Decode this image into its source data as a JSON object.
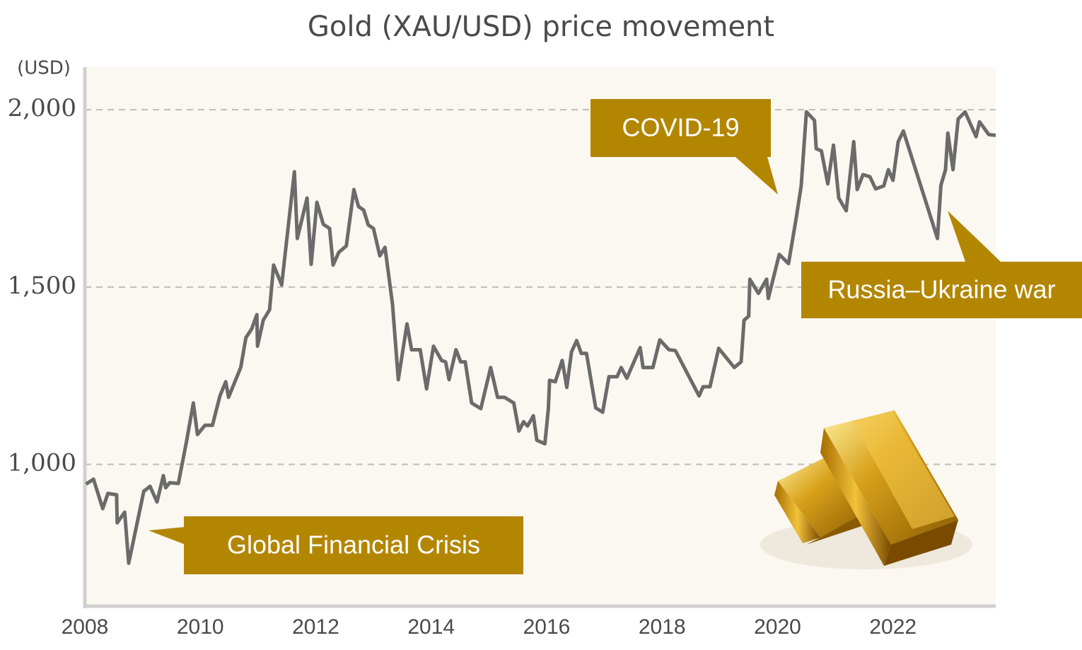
{
  "chart_data": {
    "type": "line",
    "title": "Gold (XAU/USD) price movement",
    "y_label": "(USD)",
    "color": "#6b6b6b",
    "grid": true,
    "xlim": [
      2008,
      2023.78
    ],
    "xticks": [
      2008,
      2010,
      2012,
      2014,
      2016,
      2018,
      2020,
      2022
    ],
    "ylim": [
      600,
      2120
    ],
    "yticks": [
      {
        "value": 1000,
        "label": "1,000"
      },
      {
        "value": 1500,
        "label": "1,500"
      },
      {
        "value": 2000,
        "label": "2,000"
      }
    ],
    "x": [
      2008.02,
      2008.15,
      2008.31,
      2008.4,
      2008.55,
      2008.56,
      2008.69,
      2008.76,
      2009.02,
      2009.13,
      2009.25,
      2009.36,
      2009.4,
      2009.47,
      2009.62,
      2009.76,
      2009.88,
      2009.95,
      2010.08,
      2010.21,
      2010.34,
      2010.44,
      2010.49,
      2010.7,
      2010.79,
      2010.89,
      2010.98,
      2010.99,
      2011.09,
      2011.2,
      2011.27,
      2011.41,
      2011.63,
      2011.68,
      2011.85,
      2011.92,
      2012.02,
      2012.13,
      2012.24,
      2012.3,
      2012.4,
      2012.53,
      2012.66,
      2012.74,
      2012.83,
      2012.91,
      2013.0,
      2013.11,
      2013.2,
      2013.33,
      2013.43,
      2013.58,
      2013.66,
      2013.81,
      2013.92,
      2014.04,
      2014.18,
      2014.25,
      2014.31,
      2014.43,
      2014.51,
      2014.59,
      2014.7,
      2014.86,
      2015.03,
      2015.15,
      2015.27,
      2015.43,
      2015.52,
      2015.6,
      2015.67,
      2015.77,
      2015.83,
      2015.97,
      2016.03,
      2016.05,
      2016.15,
      2016.27,
      2016.35,
      2016.43,
      2016.52,
      2016.6,
      2016.69,
      2016.85,
      2016.97,
      2017.08,
      2017.22,
      2017.29,
      2017.39,
      2017.62,
      2017.67,
      2017.84,
      2017.96,
      2018.12,
      2018.23,
      2018.64,
      2018.71,
      2018.83,
      2018.98,
      2019.25,
      2019.37,
      2019.42,
      2019.5,
      2019.52,
      2019.67,
      2019.81,
      2019.84,
      2020.03,
      2020.19,
      2020.32,
      2020.41,
      2020.5,
      2020.64,
      2020.67,
      2020.76,
      2020.87,
      2020.97,
      2021.06,
      2021.19,
      2021.32,
      2021.38,
      2021.48,
      2021.6,
      2021.7,
      2021.84,
      2021.92,
      2022.0,
      2022.09,
      2022.18,
      2022.77,
      2022.83,
      2022.91,
      2022.95,
      2023.04,
      2023.13,
      2023.25,
      2023.44,
      2023.5,
      2023.66,
      2023.78
    ],
    "values": [
      944,
      958,
      875,
      918,
      914,
      835,
      865,
      721,
      924,
      938,
      894,
      968,
      934,
      948,
      946,
      1064,
      1173,
      1084,
      1110,
      1110,
      1193,
      1233,
      1189,
      1273,
      1357,
      1382,
      1422,
      1333,
      1406,
      1436,
      1562,
      1506,
      1825,
      1637,
      1751,
      1564,
      1739,
      1677,
      1665,
      1562,
      1598,
      1616,
      1775,
      1727,
      1717,
      1675,
      1665,
      1588,
      1612,
      1452,
      1239,
      1396,
      1323,
      1323,
      1213,
      1333,
      1293,
      1289,
      1239,
      1323,
      1289,
      1289,
      1173,
      1157,
      1273,
      1189,
      1189,
      1173,
      1094,
      1120,
      1108,
      1137,
      1068,
      1058,
      1157,
      1237,
      1233,
      1293,
      1217,
      1317,
      1349,
      1313,
      1313,
      1159,
      1147,
      1247,
      1247,
      1273,
      1243,
      1329,
      1273,
      1273,
      1351,
      1323,
      1321,
      1193,
      1219,
      1219,
      1327,
      1273,
      1289,
      1406,
      1418,
      1522,
      1482,
      1522,
      1468,
      1592,
      1566,
      1691,
      1785,
      1994,
      1970,
      1890,
      1884,
      1791,
      1900,
      1751,
      1715,
      1910,
      1775,
      1817,
      1811,
      1777,
      1785,
      1831,
      1801,
      1910,
      1940,
      1637,
      1787,
      1831,
      1934,
      1831,
      1974,
      1994,
      1924,
      1966,
      1930,
      1928
    ],
    "annotations": [
      {
        "text": "Global Financial Crisis"
      },
      {
        "text": "COVID-19"
      },
      {
        "text": "Russia–Ukraine war"
      }
    ]
  }
}
